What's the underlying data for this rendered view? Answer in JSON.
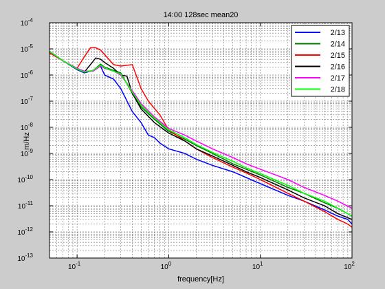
{
  "chart_data": {
    "type": "line",
    "title": "14:00 128sec mean20",
    "xlabel": "frequency[Hz]",
    "ylabel": "m/Hz",
    "xscale": "log",
    "yscale": "log",
    "xlim": [
      0.05,
      100
    ],
    "ylim": [
      1e-13,
      0.0001
    ],
    "grid": "on (major and minor, dashed)",
    "legend_position": "top-right",
    "x_tick_labels": [
      {
        "value": 0.1,
        "base": "10",
        "exp": "-1"
      },
      {
        "value": 1,
        "base": "10",
        "exp": "0"
      },
      {
        "value": 10,
        "base": "10",
        "exp": "1"
      },
      {
        "value": 100,
        "base": "10",
        "exp": "2"
      }
    ],
    "y_tick_labels": [
      {
        "value": 1e-13,
        "base": "10",
        "exp": "-13"
      },
      {
        "value": 1e-12,
        "base": "10",
        "exp": "-12"
      },
      {
        "value": 1e-11,
        "base": "10",
        "exp": "-11"
      },
      {
        "value": 1e-10,
        "base": "10",
        "exp": "-10"
      },
      {
        "value": 1e-09,
        "base": "10",
        "exp": "-9"
      },
      {
        "value": 1e-08,
        "base": "10",
        "exp": "-8"
      },
      {
        "value": 1e-07,
        "base": "10",
        "exp": "-7"
      },
      {
        "value": 1e-06,
        "base": "10",
        "exp": "-6"
      },
      {
        "value": 1e-05,
        "base": "10",
        "exp": "-5"
      },
      {
        "value": 0.0001,
        "base": "10",
        "exp": "-4"
      }
    ],
    "series": [
      {
        "name": "2/13",
        "color": "#0000ff",
        "points": [
          [
            0.05,
            8e-06
          ],
          [
            0.07,
            3.5e-06
          ],
          [
            0.1,
            1.6e-06
          ],
          [
            0.12,
            1.2e-06
          ],
          [
            0.15,
            1.5e-06
          ],
          [
            0.18,
            2.2e-06
          ],
          [
            0.2,
            1e-06
          ],
          [
            0.25,
            7e-07
          ],
          [
            0.3,
            3e-07
          ],
          [
            0.4,
            4e-08
          ],
          [
            0.5,
            1.5e-08
          ],
          [
            0.6,
            5e-09
          ],
          [
            0.7,
            4e-09
          ],
          [
            0.8,
            2.5e-09
          ],
          [
            1.0,
            1.5e-09
          ],
          [
            1.5,
            1e-09
          ],
          [
            2,
            6e-10
          ],
          [
            3,
            3.5e-10
          ],
          [
            5,
            2e-10
          ],
          [
            7,
            1.2e-10
          ],
          [
            10,
            7e-11
          ],
          [
            20,
            2.5e-11
          ],
          [
            30,
            1.5e-11
          ],
          [
            50,
            7e-12
          ],
          [
            70,
            4e-12
          ],
          [
            90,
            3e-12
          ],
          [
            100,
            2e-12
          ]
        ]
      },
      {
        "name": "2/14",
        "color": "#007700",
        "points": [
          [
            0.05,
            8e-06
          ],
          [
            0.07,
            3.5e-06
          ],
          [
            0.1,
            1.7e-06
          ],
          [
            0.12,
            1.3e-06
          ],
          [
            0.15,
            1.5e-06
          ],
          [
            0.18,
            2.6e-06
          ],
          [
            0.2,
            2e-06
          ],
          [
            0.25,
            1.5e-06
          ],
          [
            0.3,
            1.2e-06
          ],
          [
            0.4,
            2e-07
          ],
          [
            0.5,
            6e-08
          ],
          [
            0.7,
            2e-08
          ],
          [
            1.0,
            7e-09
          ],
          [
            1.5,
            3.5e-09
          ],
          [
            2,
            2e-09
          ],
          [
            3,
            1e-09
          ],
          [
            5,
            4e-10
          ],
          [
            7,
            2.5e-10
          ],
          [
            10,
            1.5e-10
          ],
          [
            20,
            5e-11
          ],
          [
            30,
            3e-11
          ],
          [
            50,
            1.3e-11
          ],
          [
            70,
            8e-12
          ],
          [
            100,
            4e-12
          ]
        ]
      },
      {
        "name": "2/15",
        "color": "#ff0000",
        "points": [
          [
            0.05,
            7e-06
          ],
          [
            0.07,
            3.5e-06
          ],
          [
            0.1,
            1.8e-06
          ],
          [
            0.12,
            5e-06
          ],
          [
            0.14,
            1.1e-05
          ],
          [
            0.16,
            1.1e-05
          ],
          [
            0.18,
            9e-06
          ],
          [
            0.2,
            6e-06
          ],
          [
            0.25,
            2.5e-06
          ],
          [
            0.3,
            2.2e-06
          ],
          [
            0.4,
            2.5e-06
          ],
          [
            0.5,
            3e-07
          ],
          [
            0.6,
            1e-07
          ],
          [
            0.8,
            3e-08
          ],
          [
            1.0,
            8e-09
          ],
          [
            1.5,
            3e-09
          ],
          [
            2,
            1.5e-09
          ],
          [
            3,
            7e-10
          ],
          [
            5,
            3e-10
          ],
          [
            7,
            1.8e-10
          ],
          [
            10,
            1e-10
          ],
          [
            20,
            3e-11
          ],
          [
            30,
            1.5e-11
          ],
          [
            50,
            6e-12
          ],
          [
            70,
            3e-12
          ],
          [
            90,
            2e-12
          ],
          [
            100,
            1.5e-12
          ]
        ]
      },
      {
        "name": "2/16",
        "color": "#000000",
        "points": [
          [
            0.05,
            8e-06
          ],
          [
            0.07,
            3.5e-06
          ],
          [
            0.1,
            1.7e-06
          ],
          [
            0.12,
            1.3e-06
          ],
          [
            0.14,
            2.5e-06
          ],
          [
            0.16,
            4.5e-06
          ],
          [
            0.18,
            4e-06
          ],
          [
            0.2,
            3e-06
          ],
          [
            0.25,
            1.8e-06
          ],
          [
            0.3,
            1e-06
          ],
          [
            0.35,
            9e-07
          ],
          [
            0.4,
            2e-07
          ],
          [
            0.5,
            5e-08
          ],
          [
            0.7,
            1.5e-08
          ],
          [
            1.0,
            6e-09
          ],
          [
            1.5,
            3e-09
          ],
          [
            2,
            1.5e-09
          ],
          [
            3,
            8e-10
          ],
          [
            5,
            3.5e-10
          ],
          [
            7,
            2e-10
          ],
          [
            10,
            1.2e-10
          ],
          [
            20,
            4e-11
          ],
          [
            30,
            2e-11
          ],
          [
            50,
            1e-11
          ],
          [
            70,
            5e-12
          ],
          [
            100,
            3e-12
          ]
        ]
      },
      {
        "name": "2/17",
        "color": "#ff00ff",
        "points": [
          [
            0.05,
            8e-06
          ],
          [
            0.07,
            3.5e-06
          ],
          [
            0.1,
            1.8e-06
          ],
          [
            0.12,
            1.4e-06
          ],
          [
            0.15,
            1.4e-06
          ],
          [
            0.18,
            2.2e-06
          ],
          [
            0.2,
            1.8e-06
          ],
          [
            0.25,
            1.4e-06
          ],
          [
            0.3,
            1e-06
          ],
          [
            0.4,
            2.5e-07
          ],
          [
            0.5,
            8e-08
          ],
          [
            0.7,
            2.5e-08
          ],
          [
            1.0,
            9e-09
          ],
          [
            1.5,
            5e-09
          ],
          [
            2,
            3e-09
          ],
          [
            3,
            1.5e-09
          ],
          [
            5,
            7e-10
          ],
          [
            7,
            4e-10
          ],
          [
            10,
            2.5e-10
          ],
          [
            20,
            1e-10
          ],
          [
            30,
            5e-11
          ],
          [
            50,
            2.5e-11
          ],
          [
            70,
            1.5e-11
          ],
          [
            100,
            8e-12
          ]
        ]
      },
      {
        "name": "2/18",
        "color": "#00ff00",
        "points": [
          [
            0.05,
            8e-06
          ],
          [
            0.07,
            3.5e-06
          ],
          [
            0.1,
            1.7e-06
          ],
          [
            0.12,
            1.3e-06
          ],
          [
            0.15,
            1.5e-06
          ],
          [
            0.18,
            2.4e-06
          ],
          [
            0.2,
            1.9e-06
          ],
          [
            0.25,
            1.4e-06
          ],
          [
            0.3,
            1.1e-06
          ],
          [
            0.4,
            2.2e-07
          ],
          [
            0.5,
            7e-08
          ],
          [
            0.7,
            2.2e-08
          ],
          [
            1.0,
            8e-09
          ],
          [
            1.5,
            4e-09
          ],
          [
            2,
            2.2e-09
          ],
          [
            3,
            1.1e-09
          ],
          [
            5,
            5e-10
          ],
          [
            7,
            2.8e-10
          ],
          [
            10,
            1.7e-10
          ],
          [
            20,
            6e-11
          ],
          [
            30,
            3e-11
          ],
          [
            50,
            1.5e-11
          ],
          [
            70,
            8e-12
          ],
          [
            100,
            4e-12
          ]
        ]
      }
    ]
  }
}
